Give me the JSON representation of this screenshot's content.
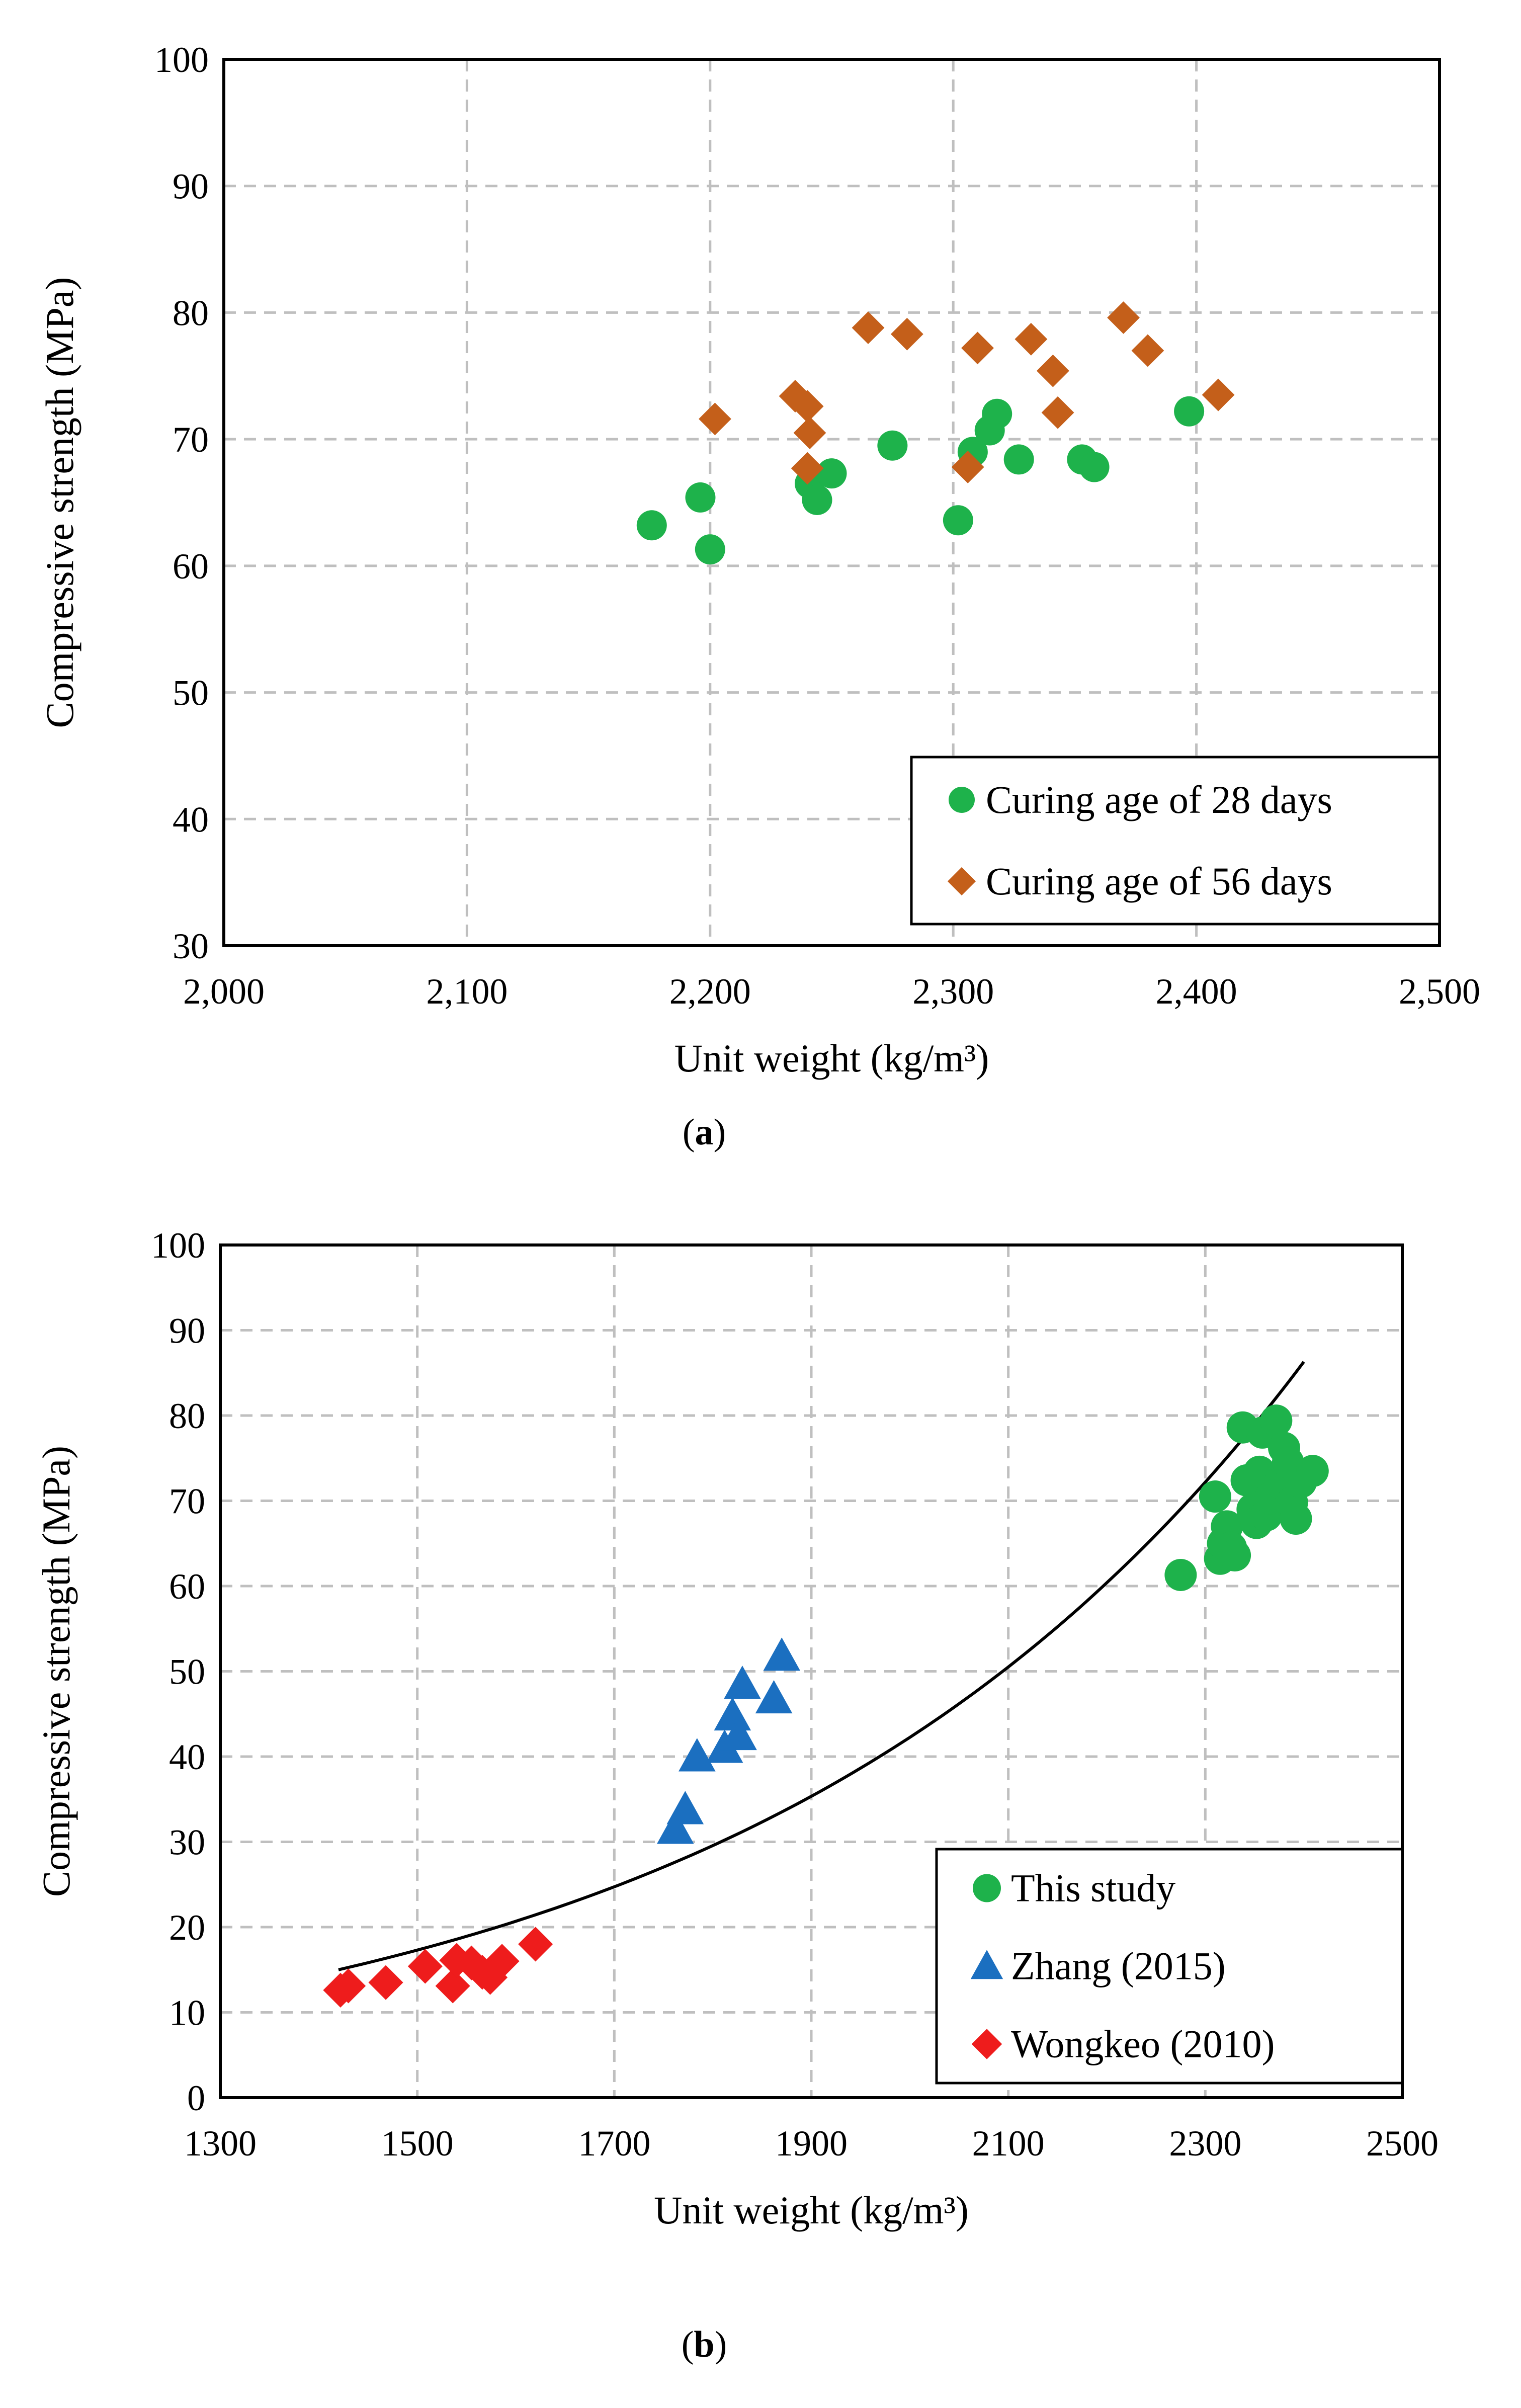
{
  "colors": {
    "curing_28": "#1eb24b",
    "curing_56": "#c45f1a",
    "this_study": "#1eb24b",
    "zhang": "#1b6fc0",
    "wongkeo": "#ee1c1c",
    "trend": "#000000"
  },
  "chart_data": [
    {
      "type": "scatter",
      "panel_label": "(a)",
      "panel_label_bold": "a",
      "xlabel": "Unit weight (kg/m³)",
      "ylabel": "Compressive strength (MPa)",
      "xlim": [
        2000,
        2500
      ],
      "ylim": [
        30,
        100
      ],
      "xticks": [
        2000,
        2100,
        2200,
        2300,
        2400,
        2500
      ],
      "xtick_labels": [
        "2,000",
        "2,100",
        "2,200",
        "2,300",
        "2,400",
        "2,500"
      ],
      "yticks": [
        30,
        40,
        50,
        60,
        70,
        80,
        90,
        100
      ],
      "ytick_labels": [
        "30",
        "40",
        "50",
        "60",
        "70",
        "80",
        "90",
        "100"
      ],
      "grid": true,
      "legend_position": "bottom-right",
      "series": [
        {
          "name": "Curing age of 28 days",
          "marker": "circle",
          "color": "#1eb24b",
          "points": [
            [
              2176,
              63.2
            ],
            [
              2196,
              65.4
            ],
            [
              2200,
              61.3
            ],
            [
              2241,
              66.5
            ],
            [
              2244,
              65.2
            ],
            [
              2250,
              67.3
            ],
            [
              2275,
              69.5
            ],
            [
              2302,
              63.6
            ],
            [
              2308,
              69.0
            ],
            [
              2315,
              70.7
            ],
            [
              2318,
              72.0
            ],
            [
              2327,
              68.4
            ],
            [
              2353,
              68.4
            ],
            [
              2358,
              67.8
            ],
            [
              2397,
              72.2
            ]
          ]
        },
        {
          "name": "Curing age of 56 days",
          "marker": "diamond",
          "color": "#c45f1a",
          "points": [
            [
              2202,
              71.6
            ],
            [
              2235,
              73.4
            ],
            [
              2240,
              72.6
            ],
            [
              2241,
              70.5
            ],
            [
              2240,
              67.7
            ],
            [
              2265,
              78.8
            ],
            [
              2281,
              78.3
            ],
            [
              2306,
              67.8
            ],
            [
              2310,
              77.2
            ],
            [
              2332,
              77.9
            ],
            [
              2341,
              75.4
            ],
            [
              2343,
              72.1
            ],
            [
              2370,
              79.6
            ],
            [
              2380,
              77.0
            ],
            [
              2409,
              73.5
            ]
          ]
        }
      ]
    },
    {
      "type": "scatter",
      "panel_label": "(b)",
      "panel_label_bold": "b",
      "xlabel": "Unit weight (kg/m³)",
      "ylabel": "Compressive strength (MPa)",
      "xlim": [
        1300,
        2500
      ],
      "ylim": [
        0,
        100
      ],
      "xticks": [
        1300,
        1500,
        1700,
        1900,
        2100,
        2300,
        2500
      ],
      "xtick_labels": [
        "1300",
        "1500",
        "1700",
        "1900",
        "2100",
        "2300",
        "2500"
      ],
      "yticks": [
        0,
        10,
        20,
        30,
        40,
        50,
        60,
        70,
        80,
        90,
        100
      ],
      "ytick_labels": [
        "0",
        "10",
        "20",
        "30",
        "40",
        "50",
        "60",
        "70",
        "80",
        "90",
        "100"
      ],
      "grid": true,
      "legend_position": "bottom-right",
      "series": [
        {
          "name": "This study",
          "marker": "circle",
          "color": "#1eb24b",
          "points": [
            [
              2275,
              61.3
            ],
            [
              2310,
              70.5
            ],
            [
              2315,
              63.2
            ],
            [
              2318,
              65.0
            ],
            [
              2322,
              67.0
            ],
            [
              2326,
              64.5
            ],
            [
              2330,
              63.6
            ],
            [
              2338,
              78.6
            ],
            [
              2342,
              72.4
            ],
            [
              2348,
              69.0
            ],
            [
              2352,
              67.4
            ],
            [
              2355,
              73.4
            ],
            [
              2358,
              78.0
            ],
            [
              2362,
              68.3
            ],
            [
              2366,
              70.3
            ],
            [
              2372,
              79.4
            ],
            [
              2376,
              72.1
            ],
            [
              2380,
              76.2
            ],
            [
              2384,
              74.5
            ],
            [
              2388,
              69.8
            ],
            [
              2392,
              67.9
            ],
            [
              2397,
              72.2
            ],
            [
              2409,
              73.5
            ]
          ]
        },
        {
          "name": "Zhang (2015)",
          "marker": "triangle",
          "color": "#1b6fc0",
          "points": [
            [
              1762,
              31.5
            ],
            [
              1772,
              33.8
            ],
            [
              1784,
              40.0
            ],
            [
              1812,
              41.0
            ],
            [
              1820,
              44.8
            ],
            [
              1826,
              42.5
            ],
            [
              1830,
              48.5
            ],
            [
              1862,
              46.8
            ],
            [
              1870,
              51.8
            ]
          ]
        },
        {
          "name": "Wongkeo (2010)",
          "marker": "diamond",
          "color": "#ee1c1c",
          "points": [
            [
              1422,
              12.6
            ],
            [
              1430,
              13.1
            ],
            [
              1468,
              13.5
            ],
            [
              1508,
              15.4
            ],
            [
              1536,
              13.1
            ],
            [
              1540,
              16.1
            ],
            [
              1555,
              15.8
            ],
            [
              1566,
              14.7
            ],
            [
              1574,
              14.1
            ],
            [
              1586,
              16.0
            ],
            [
              1620,
              18.0
            ]
          ]
        }
      ],
      "trendline": {
        "type": "exponential",
        "x_range": [
          1420,
          2400
        ],
        "points": [
          [
            1420,
            15.0
          ],
          [
            1900,
            34.5
          ],
          [
            2400,
            86.3
          ]
        ]
      }
    }
  ]
}
